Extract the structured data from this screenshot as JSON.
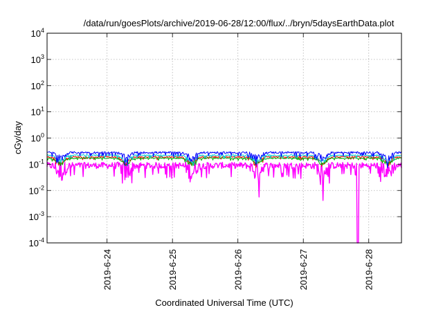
{
  "chart_data": {
    "type": "line",
    "title": "/data/run/goesPlots/archive/2019-06-28/12:00/flux/../bryn/5daysEarthData.plot",
    "xlabel": "Coordinated Universal Time (UTC)",
    "ylabel": "cGy/day",
    "yscale": "log",
    "ylim": [
      0.0001,
      10000
    ],
    "yticks": [
      {
        "base": "10",
        "exp": "-4"
      },
      {
        "base": "10",
        "exp": "-3"
      },
      {
        "base": "10",
        "exp": "-2"
      },
      {
        "base": "10",
        "exp": "-1"
      },
      {
        "base": "10",
        "exp": "0"
      },
      {
        "base": "10",
        "exp": "1"
      },
      {
        "base": "10",
        "exp": "2"
      },
      {
        "base": "10",
        "exp": "3"
      },
      {
        "base": "10",
        "exp": "4"
      }
    ],
    "xlim": [
      "2019-06-23T02:00",
      "2019-06-28T12:00"
    ],
    "xticks": [
      "2019-6-24",
      "2019-6-25",
      "2019-6-26",
      "2019-6-27",
      "2019-6-28"
    ],
    "xtick_dates": [
      "2019-06-24T00:00",
      "2019-06-25T00:00",
      "2019-06-26T00:00",
      "2019-06-27T00:00",
      "2019-06-28T00:00"
    ],
    "grid": true,
    "legend": "none",
    "series": [
      {
        "color": "#ff00ff",
        "baseline": 0.09,
        "dip_depth": 0.45,
        "noise": 0.55,
        "dropout": {
          "x": "2019-06-27T20:00",
          "value": 0.0001
        }
      },
      {
        "color": "#ff0000",
        "baseline": 0.19,
        "dip_depth": 0.4,
        "noise": 0.12
      },
      {
        "color": "#00aa00",
        "baseline": 0.17,
        "dip_depth": 0.4,
        "noise": 0.1
      },
      {
        "color": "#00cccc",
        "baseline": 0.22,
        "dip_depth": 0.4,
        "noise": 0.12
      },
      {
        "color": "#0000ff",
        "baseline": 0.28,
        "dip_depth": 0.4,
        "noise": 0.18
      }
    ]
  }
}
